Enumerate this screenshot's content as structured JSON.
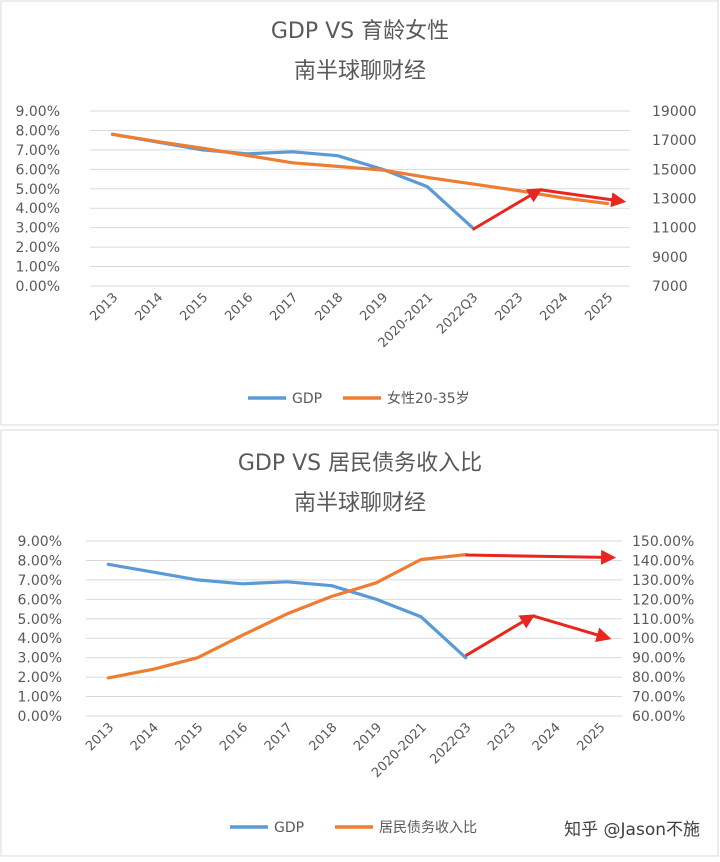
{
  "charts": [
    {
      "title_line1": "GDP VS 育龄女性",
      "title_line2": "南半球聊财经",
      "annotation": ""
    },
    {
      "title_line1": "GDP VS 居民债务收入比",
      "title_line2": "南半球聊财经",
      "annotation": "知乎 @Jason不施"
    }
  ],
  "colors": {
    "gdp": "#5b9bd5",
    "second": "#ed7d31",
    "arrow": "#e8261e",
    "grid": "#d9d9d9",
    "text": "#595959"
  },
  "chart_data": [
    {
      "type": "line",
      "title": "GDP VS 育龄女性",
      "subtitle": "南半球聊财经",
      "categories": [
        "2013",
        "2014",
        "2015",
        "2016",
        "2017",
        "2018",
        "2019",
        "2020-2021",
        "2022Q3",
        "2023",
        "2024",
        "2025"
      ],
      "y_left": {
        "min": 0,
        "max": 0.09,
        "step": 0.01,
        "ticks": [
          "0.00%",
          "1.00%",
          "2.00%",
          "3.00%",
          "4.00%",
          "5.00%",
          "6.00%",
          "7.00%",
          "8.00%",
          "9.00%"
        ]
      },
      "y_right": {
        "min": 7000,
        "max": 19000,
        "step": 2000,
        "ticks": [
          "7000",
          "9000",
          "11000",
          "13000",
          "15000",
          "17000",
          "19000"
        ]
      },
      "series": [
        {
          "name": "GDP",
          "axis": "left",
          "values": [
            0.078,
            0.074,
            0.07,
            0.068,
            0.069,
            0.067,
            0.06,
            0.051,
            0.03,
            null,
            null,
            null
          ]
        },
        {
          "name": "女性20-35岁",
          "axis": "right",
          "values": [
            17400,
            16900,
            16450,
            15950,
            15450,
            15200,
            14950,
            14450,
            14000,
            13550,
            13050,
            12650
          ]
        }
      ],
      "legend_position": "bottom",
      "grid": true,
      "arrows": [
        {
          "from": [
            8.0,
            0.029
          ],
          "to": [
            9.5,
            0.0495
          ]
        },
        {
          "from": [
            9.5,
            0.0495
          ],
          "to": [
            11.35,
            0.0435
          ]
        }
      ]
    },
    {
      "type": "line",
      "title": "GDP VS 居民债务收入比",
      "subtitle": "南半球聊财经",
      "categories": [
        "2013",
        "2014",
        "2015",
        "2016",
        "2017",
        "2018",
        "2019",
        "2020-2021",
        "2022Q3",
        "2023",
        "2024",
        "2025"
      ],
      "y_left": {
        "min": 0,
        "max": 0.09,
        "step": 0.01,
        "ticks": [
          "0.00%",
          "1.00%",
          "2.00%",
          "3.00%",
          "4.00%",
          "5.00%",
          "6.00%",
          "7.00%",
          "8.00%",
          "9.00%"
        ]
      },
      "y_right": {
        "min": 0.6,
        "max": 1.5,
        "step": 0.1,
        "ticks": [
          "60.00%",
          "70.00%",
          "80.00%",
          "90.00%",
          "100.00%",
          "110.00%",
          "120.00%",
          "130.00%",
          "140.00%",
          "150.00%"
        ]
      },
      "series": [
        {
          "name": "GDP",
          "axis": "left",
          "values": [
            0.078,
            0.074,
            0.07,
            0.068,
            0.069,
            0.067,
            0.06,
            0.051,
            0.03,
            null,
            null,
            null
          ]
        },
        {
          "name": "居民债务收入比",
          "axis": "right",
          "values": [
            0.796,
            0.84,
            0.9,
            1.015,
            1.125,
            1.215,
            1.285,
            1.405,
            1.43,
            null,
            null,
            null
          ]
        }
      ],
      "legend_position": "bottom",
      "grid": true,
      "arrows": [
        {
          "from": [
            8.0,
            0.031
          ],
          "to": [
            9.5,
            0.0515
          ]
        },
        {
          "from": [
            9.5,
            0.0515
          ],
          "to": [
            11.2,
            0.04
          ]
        },
        {
          "from": [
            8.0,
            0.0828
          ],
          "to": [
            11.3,
            0.0815
          ]
        }
      ]
    }
  ]
}
